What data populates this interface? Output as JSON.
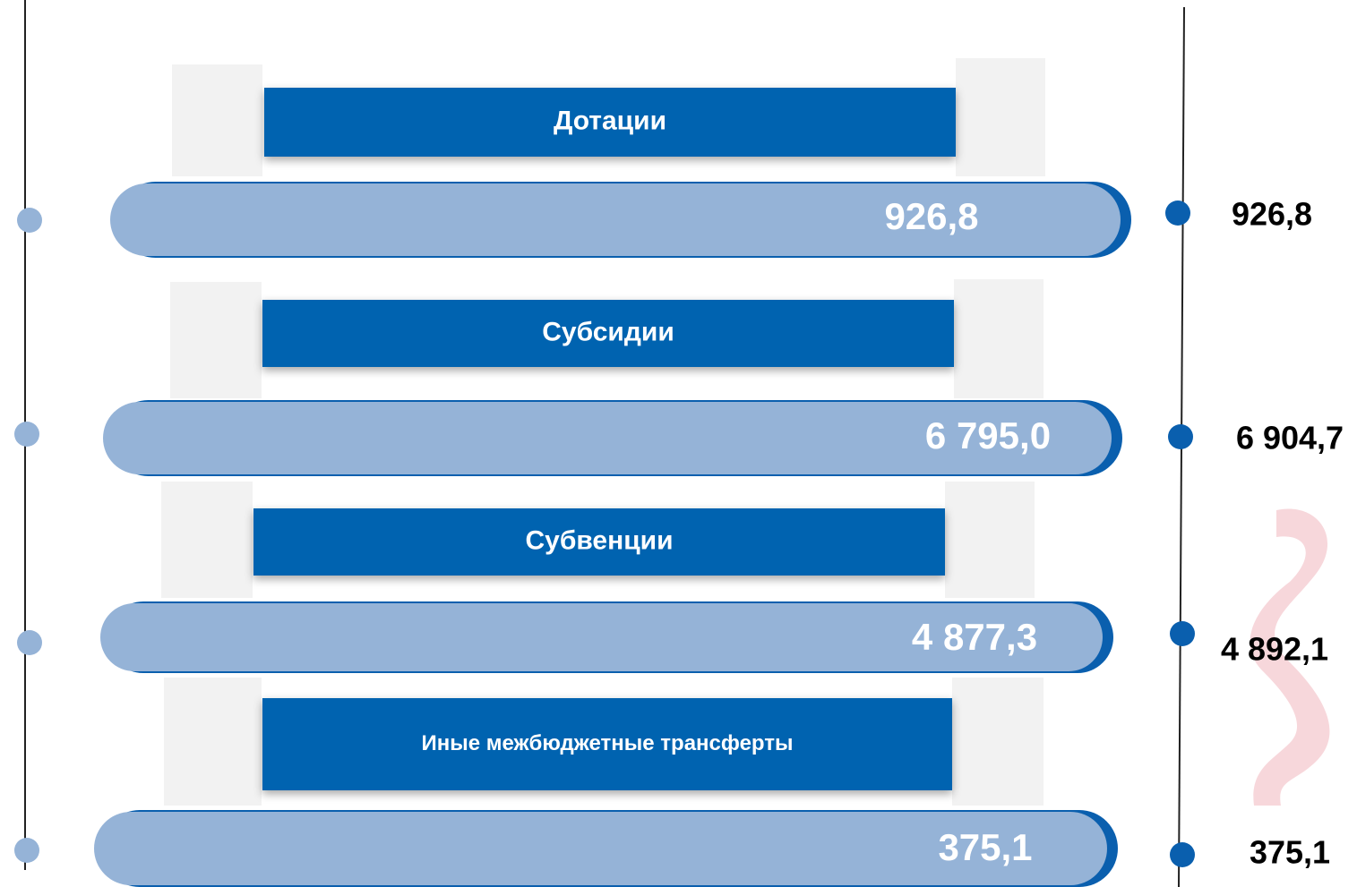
{
  "items": [
    {
      "label": "Дотации",
      "value": "926,8",
      "side_value": "926,8"
    },
    {
      "label": "Субсидии",
      "value": "6 795,0",
      "side_value": "6 904,7"
    },
    {
      "label": "Субвенции",
      "value": "4 877,3",
      "side_value": "4 892,1"
    },
    {
      "label": "Иные межбюджетные трансферты",
      "value": "375,1",
      "side_value": "375,1"
    }
  ]
}
